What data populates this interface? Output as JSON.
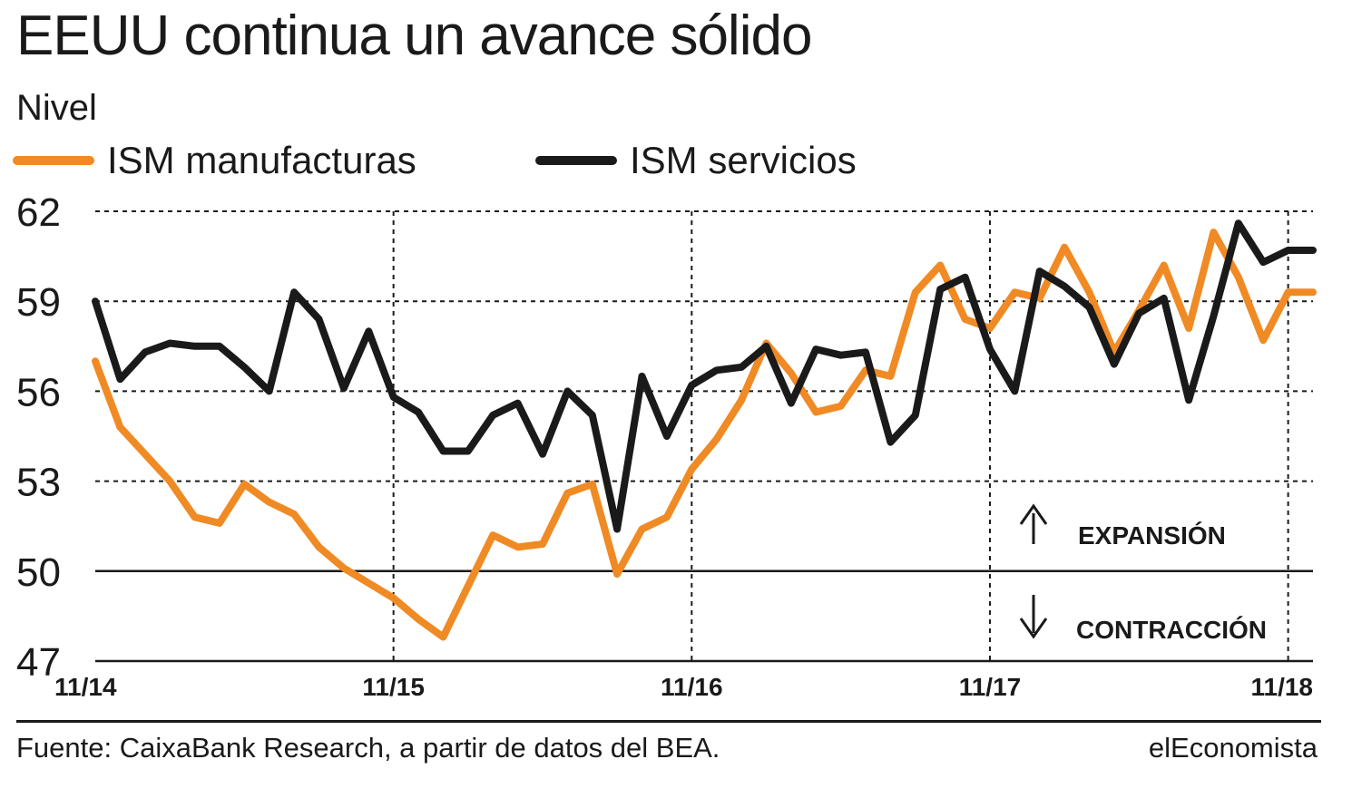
{
  "title": "EEUU continua un avance sólido",
  "subtitle": "Nivel",
  "source": "Fuente: CaixaBank Research, a partir de datos del BEA.",
  "brand": "elEconomista",
  "colors": {
    "manufacturas": "#f08a24",
    "servicios": "#1a1a1a",
    "grid": "#1a1a1a"
  },
  "annotations": {
    "expansion": "EXPANSIÓN",
    "contraccion": "CONTRACCIÓN"
  },
  "chart_data": {
    "type": "line",
    "ylim": [
      47,
      62
    ],
    "yticks": [
      "62",
      "59",
      "56",
      "53",
      "50",
      "47"
    ],
    "ytick_values": [
      62,
      59,
      56,
      53,
      50,
      47
    ],
    "xticks": [
      "11/14",
      "11/15",
      "11/16",
      "11/17",
      "11/18"
    ],
    "xtick_index": [
      0,
      12,
      24,
      36,
      48
    ],
    "x": [
      "11/14",
      "12/14",
      "01/15",
      "02/15",
      "03/15",
      "04/15",
      "05/15",
      "06/15",
      "07/15",
      "08/15",
      "09/15",
      "10/15",
      "11/15",
      "12/15",
      "01/16",
      "02/16",
      "03/16",
      "04/16",
      "05/16",
      "06/16",
      "07/16",
      "08/16",
      "09/16",
      "10/16",
      "11/16",
      "12/16",
      "01/17",
      "02/17",
      "03/17",
      "04/17",
      "05/17",
      "06/17",
      "07/17",
      "08/17",
      "09/17",
      "10/17",
      "11/17",
      "12/17",
      "01/18",
      "02/18",
      "03/18",
      "04/18",
      "05/18",
      "06/18",
      "07/18",
      "08/18",
      "09/18",
      "10/18",
      "11/18",
      "12/18"
    ],
    "grid": true,
    "legend_position": "top",
    "reference_line": 50,
    "series": [
      {
        "name": "ISM manufacturas",
        "color": "#f08a24",
        "values": [
          57.0,
          54.8,
          53.9,
          53.0,
          51.8,
          51.6,
          52.9,
          52.3,
          51.9,
          50.8,
          50.1,
          49.6,
          49.1,
          48.4,
          47.8,
          49.5,
          51.2,
          50.8,
          50.9,
          52.6,
          52.9,
          49.9,
          51.4,
          51.8,
          53.4,
          54.4,
          55.7,
          57.6,
          56.6,
          55.3,
          55.5,
          56.7,
          56.5,
          59.3,
          60.2,
          58.4,
          58.1,
          59.3,
          59.1,
          60.8,
          59.3,
          57.3,
          58.7,
          60.2,
          58.1,
          61.3,
          59.8,
          57.7,
          59.3,
          59.3
        ],
        "note": "last value repeats previous point"
      },
      {
        "name": "ISM servicios",
        "color": "#1a1a1a",
        "values": [
          59.0,
          56.4,
          57.3,
          57.6,
          57.5,
          57.5,
          56.8,
          56.0,
          59.3,
          58.4,
          56.1,
          58.0,
          55.8,
          55.3,
          54.0,
          54.0,
          55.2,
          55.6,
          53.9,
          56.0,
          55.2,
          51.4,
          56.5,
          54.5,
          56.2,
          56.7,
          56.8,
          57.5,
          55.6,
          57.4,
          57.2,
          57.3,
          54.3,
          55.2,
          59.4,
          59.8,
          57.4,
          56.0,
          60.0,
          59.5,
          58.8,
          56.9,
          58.6,
          59.1,
          55.7,
          58.5,
          61.6,
          60.3,
          60.7,
          60.7
        ],
        "note": "last value repeats previous point"
      }
    ],
    "xlabel": "",
    "ylabel": ""
  }
}
